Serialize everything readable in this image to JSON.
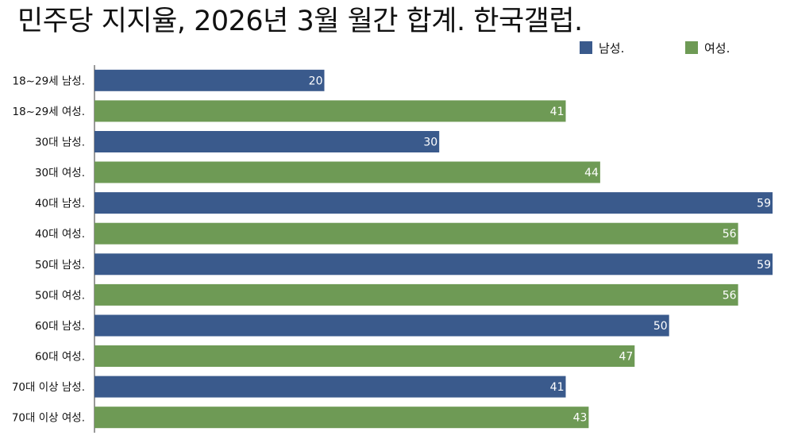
{
  "chart_data": {
    "type": "bar",
    "orientation": "horizontal",
    "title": "민주당 지지율, 2026년 3월 월간 합계. 한국갤럽.",
    "categories": [
      "18~29세 남성.",
      "18~29세 여성.",
      "30대 남성.",
      "30대 여성.",
      "40대 남성.",
      "40대 여성.",
      "50대 남성.",
      "50대 여성.",
      "60대 남성.",
      "60대 여성.",
      "70대 이상 남성.",
      "70대 이상 여성."
    ],
    "values": [
      20,
      41,
      30,
      44,
      59,
      56,
      59,
      56,
      50,
      47,
      41,
      43
    ],
    "series_by_bar": [
      "남성.",
      "여성.",
      "남성.",
      "여성.",
      "남성.",
      "여성.",
      "남성.",
      "여성.",
      "남성.",
      "여성.",
      "남성.",
      "여성."
    ],
    "legend": [
      {
        "name": "남성.",
        "color": "#3a5a8c"
      },
      {
        "name": "여성.",
        "color": "#6e9a55"
      }
    ],
    "legend_position": "top-right",
    "xlim": [
      0,
      59
    ],
    "grid": false,
    "xlabel": "",
    "ylabel": ""
  }
}
